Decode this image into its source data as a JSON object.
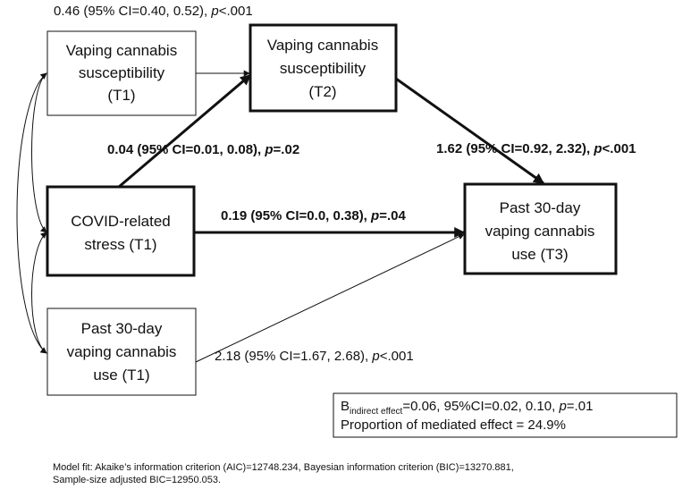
{
  "nodes": [
    {
      "lines": [
        "Vaping cannabis",
        "susceptibility",
        "(T1)"
      ]
    },
    {
      "lines": [
        "Vaping cannabis",
        "susceptibility",
        "(T2)"
      ]
    },
    {
      "lines": [
        "COVID-related",
        "stress (T1)"
      ]
    },
    {
      "lines": [
        "Past 30-day",
        "vaping cannabis",
        "use (T3)"
      ]
    },
    {
      "lines": [
        "Past 30-day",
        "vaping cannabis",
        "use (T1)"
      ]
    }
  ],
  "paths": [
    {
      "label": {
        "text": "0.46 (95% CI=0.40, 0.52), ",
        "p": "p",
        "value": "<.001"
      }
    },
    {
      "label": {
        "text": "0.04 (95% CI=0.01, 0.08), ",
        "p": "p",
        "value": "=.02"
      }
    },
    {
      "label": {
        "text": "1.62 (95% CI=0.92, 2.32), ",
        "p": "p",
        "value": "<.001"
      }
    },
    {
      "label": {
        "text": "0.19 (95% CI=0.0, 0.38), ",
        "p": "p",
        "value": "=.04"
      }
    },
    {
      "label": {
        "text": "2.18 (95% CI=1.67, 2.68), ",
        "p": "p",
        "value": "<.001"
      }
    }
  ],
  "result": {
    "b": "B",
    "sub": "indirect effect",
    "text": "=0.06, 95%CI=0.02, 0.10, ",
    "p": "p",
    "value": "=.01",
    "proportion": "Proportion of mediated effect = 24.9%"
  },
  "footnote": [
    "Model fit: Akaike’s information criterion (AIC)=12748.234, Bayesian information criterion (BIC)=13270.881,",
    "Sample-size adjusted BIC=12950.053."
  ]
}
